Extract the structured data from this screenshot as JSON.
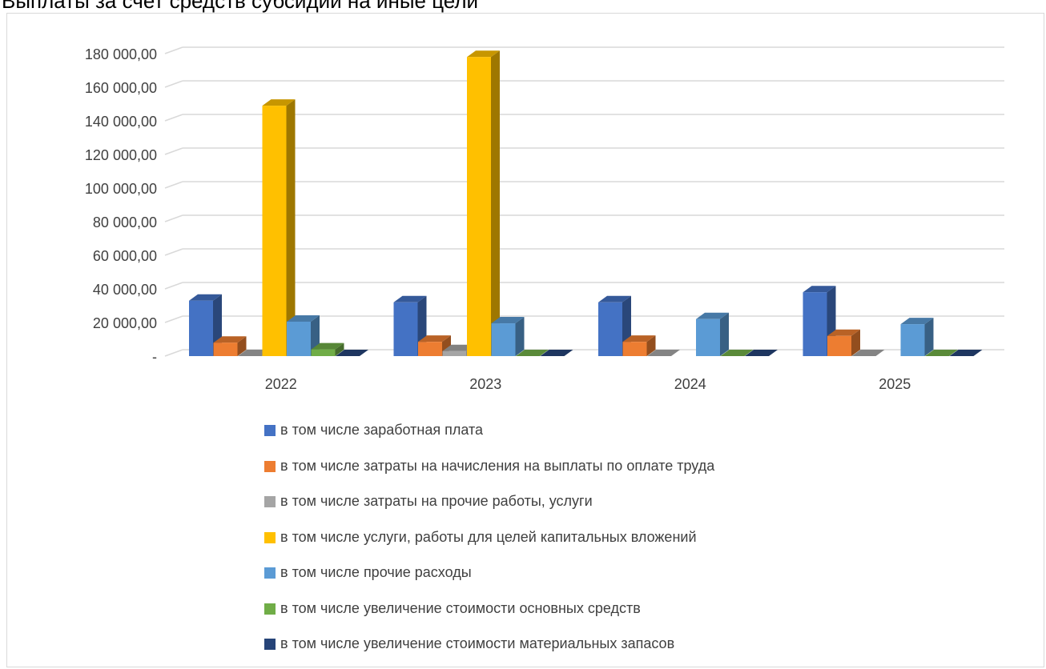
{
  "title": "Выплаты за счет средств субсидии на иные цели",
  "chart_data": {
    "type": "bar",
    "title": "Выплаты за счет средств субсидии на иные цели",
    "categories": [
      "2022",
      "2023",
      "2024",
      "2025"
    ],
    "ylim": [
      0,
      180000
    ],
    "yticks": [
      "-",
      "20 000,00",
      "40 000,00",
      "60 000,00",
      "80 000,00",
      "100 000,00",
      "120 000,00",
      "140 000,00",
      "160 000,00",
      "180 000,00"
    ],
    "grid": true,
    "legend_position": "bottom",
    "series": [
      {
        "name": "в том числе заработная плата",
        "color": "#4472c4",
        "values": [
          33000,
          32000,
          32000,
          38000
        ]
      },
      {
        "name": "в том числе затраты на начисления на выплаты по оплате труда",
        "color": "#ed7d31",
        "values": [
          8000,
          8500,
          8500,
          12000
        ]
      },
      {
        "name": "в том числе затраты на прочие работы, услуги",
        "color": "#a5a5a5",
        "values": [
          0,
          3000,
          0,
          0
        ]
      },
      {
        "name": "в том числе услуги, работы для целей капитальных вложений",
        "color": "#ffc000",
        "values": [
          149000,
          178000,
          0,
          0
        ]
      },
      {
        "name": "в том числе прочие расходы",
        "color": "#5b9bd5",
        "values": [
          20500,
          19500,
          22000,
          19000
        ]
      },
      {
        "name": "в том числе увеличение стоимости основных средств",
        "color": "#70ad47",
        "values": [
          4000,
          0,
          0,
          0
        ]
      },
      {
        "name": "в том числе увеличение стоимости материальных запасов",
        "color": "#264478",
        "values": [
          0,
          0,
          0,
          0
        ]
      }
    ]
  }
}
